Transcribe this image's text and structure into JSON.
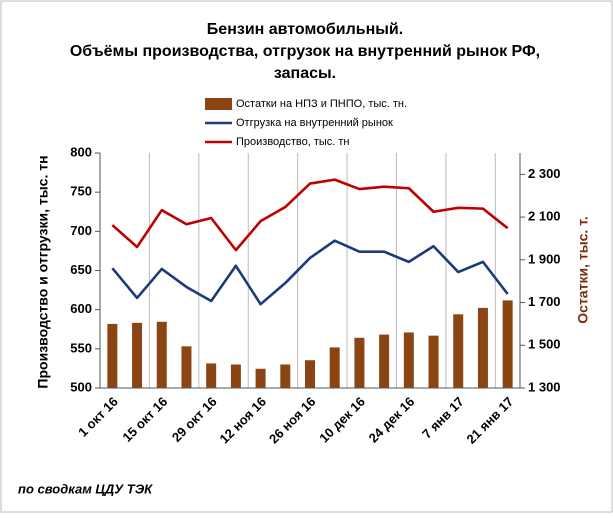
{
  "chart_data": {
    "type": "bar-line",
    "title": [
      "Бензин автомобильный.",
      "Объёмы производства,  отгрузок на внутренний рынок РФ,",
      "запасы."
    ],
    "y_label": "Производство и отгрузки, тыс. тн",
    "y2_label": "Остатки, тыс. т.",
    "source": "по сводкам ЦДУ ТЭК",
    "categories": [
      "1 окт 16",
      null,
      "15 окт 16",
      null,
      "29 окт 16",
      null,
      "12 ноя 16",
      null,
      "26 ноя 16",
      null,
      "10 дек 16",
      null,
      "24 дек 16",
      null,
      "7 янв 17",
      null,
      "21 янв 17"
    ],
    "series": [
      {
        "name": "Остатки  на НПЗ и ПНПО, тыс. тн.",
        "type": "bar",
        "axis": "y2",
        "color": "#8b4513",
        "values": [
          1600,
          1605,
          1610,
          1495,
          1415,
          1410,
          1390,
          1410,
          1430,
          1490,
          1535,
          1550,
          1560,
          1545,
          1645,
          1675,
          1710
        ]
      },
      {
        "name": "Отгрузка на внутренний  рынок",
        "type": "line",
        "color": "#1f3a7a",
        "values": [
          653,
          615,
          652,
          629,
          611,
          656,
          607,
          634,
          666,
          688,
          674,
          674,
          661,
          681,
          648,
          661,
          620
        ]
      },
      {
        "name": "Производство, тыс. тн",
        "type": "line",
        "color": "#c00000",
        "values": [
          708,
          680,
          727,
          709,
          717,
          676,
          713,
          731,
          761,
          766,
          754,
          757,
          755,
          725,
          730,
          729,
          704
        ]
      }
    ],
    "ylim": [
      500,
      800
    ],
    "yticks": [
      500,
      550,
      600,
      650,
      700,
      750,
      800
    ],
    "y2lim": [
      1300,
      2400
    ],
    "y2ticks": [
      {
        "value": 1300,
        "label": "1 300"
      },
      {
        "value": 1500,
        "label": "1 500"
      },
      {
        "value": 1700,
        "label": "1 700"
      },
      {
        "value": 1900,
        "label": "1 900"
      },
      {
        "value": 2100,
        "label": "2 100"
      },
      {
        "value": 2300,
        "label": "2 300"
      }
    ],
    "grid": true
  }
}
